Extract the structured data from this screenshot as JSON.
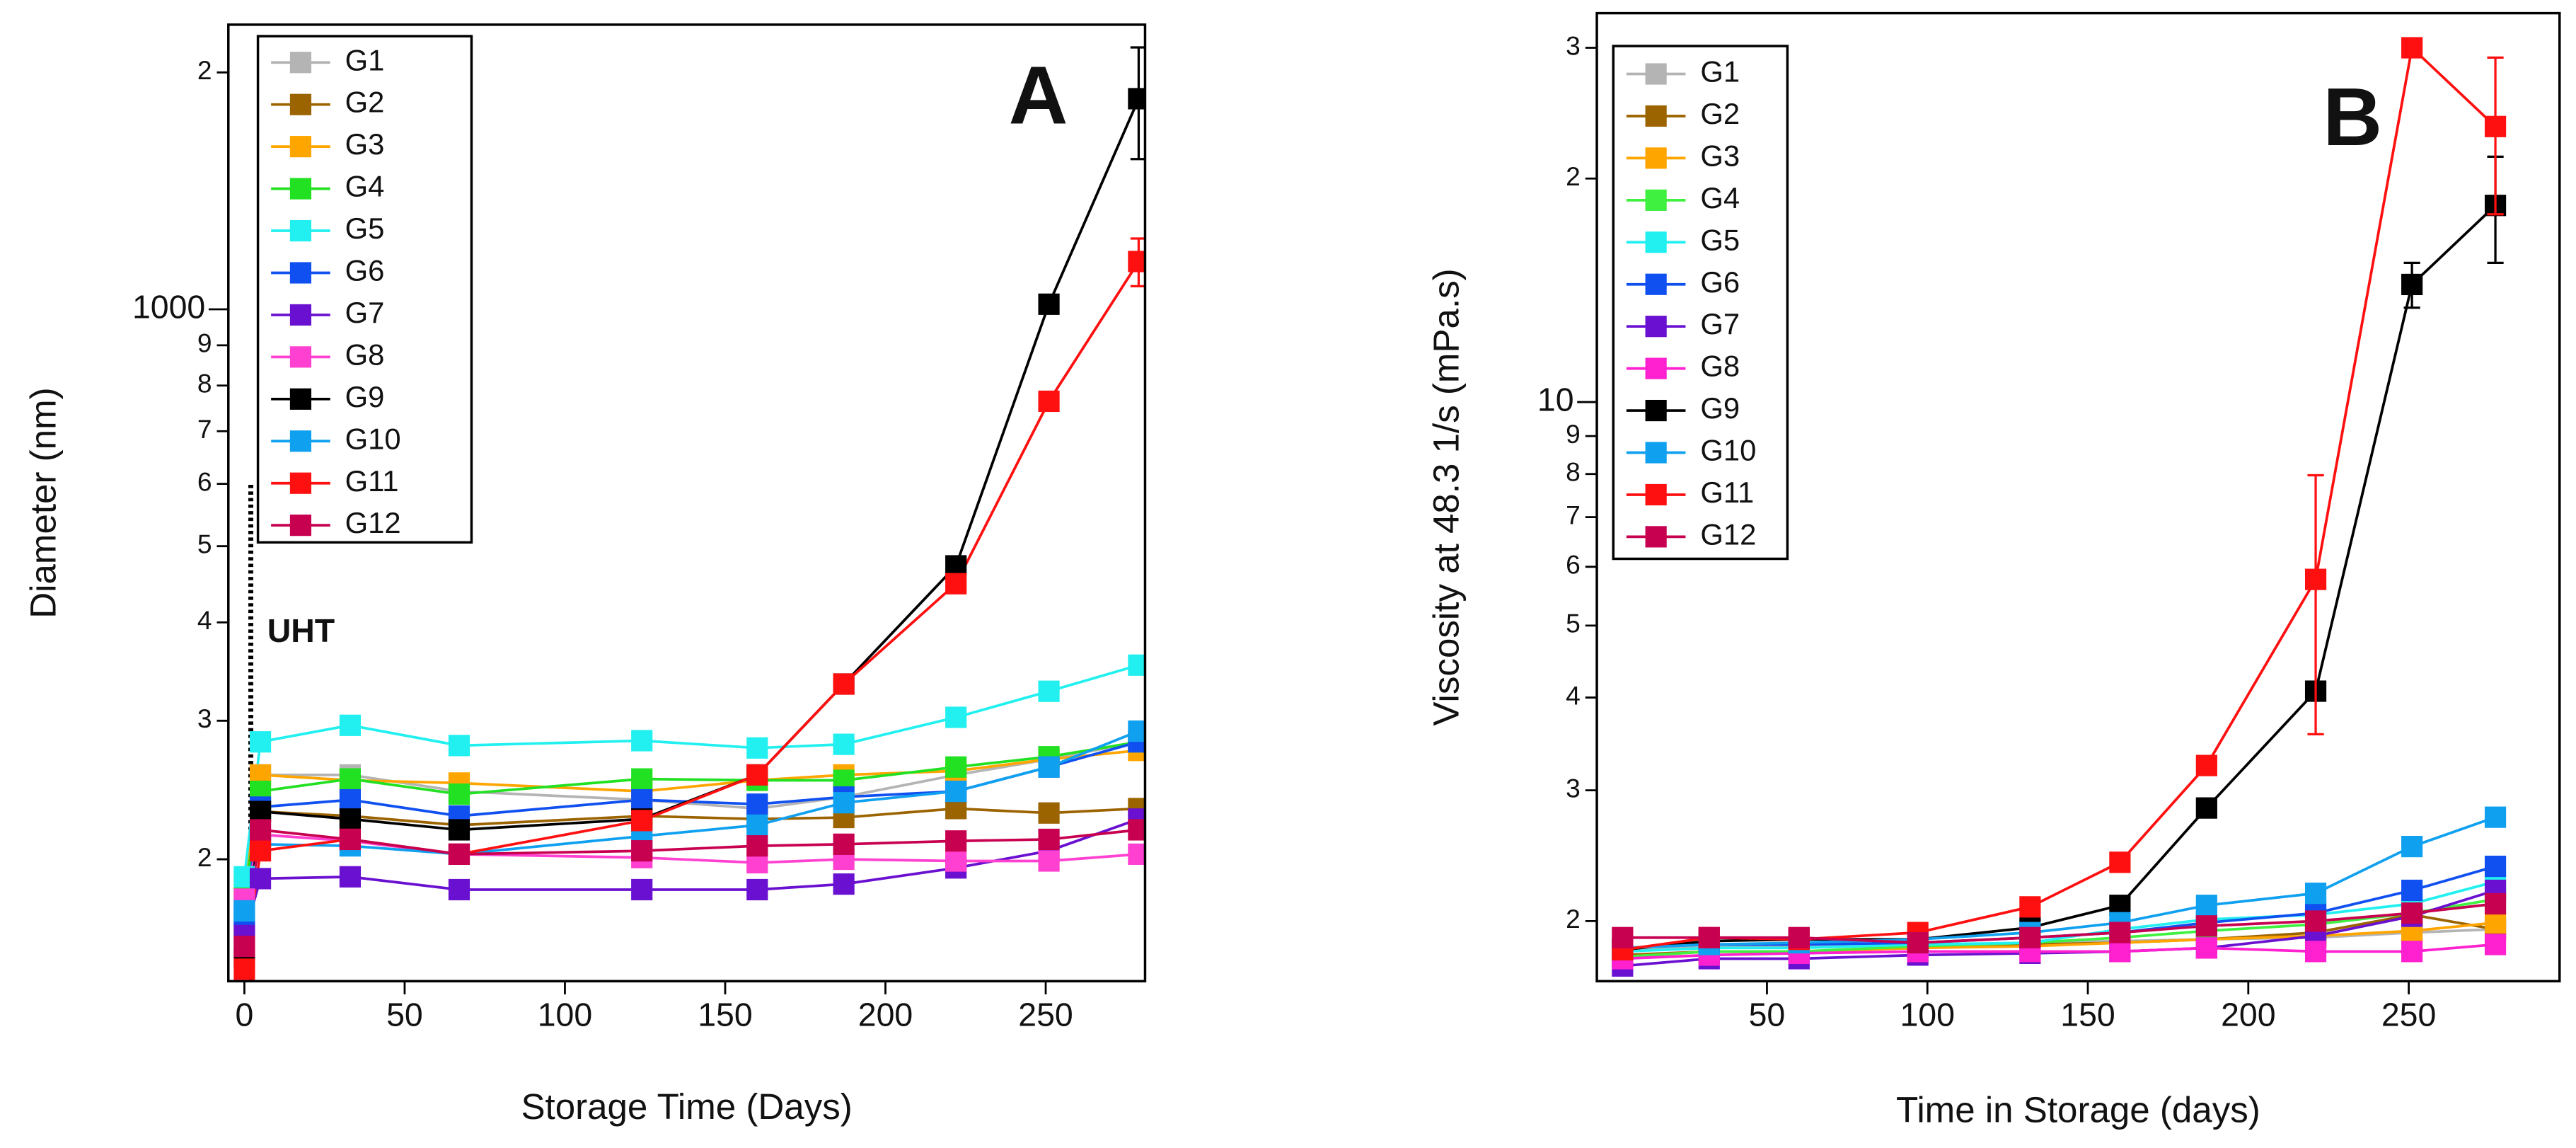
{
  "chart_data": [
    {
      "type": "line",
      "log_y": true,
      "panel_letter": "A",
      "ylabel": "Diameter (nm)",
      "xlabel": "Storage Time (Days)",
      "xlim": [
        -5,
        281
      ],
      "ylim": [
        140,
        2300
      ],
      "xticks": [
        0,
        50,
        100,
        150,
        200,
        250
      ],
      "yticks": [
        {
          "value": 2000,
          "label": "2"
        },
        1000,
        {
          "value": 900,
          "label": "9"
        },
        {
          "value": 800,
          "label": "8"
        },
        {
          "value": 700,
          "label": "7"
        },
        {
          "value": 600,
          "label": "6"
        },
        {
          "value": 500,
          "label": "5"
        },
        {
          "value": 400,
          "label": "4"
        },
        {
          "value": 300,
          "label": "3"
        },
        {
          "value": 200,
          "label": "2"
        }
      ],
      "annotation": {
        "text": "UHT",
        "x": 2,
        "y_top": 600
      },
      "legend": "upper left",
      "x": [
        0,
        5,
        33,
        67,
        124,
        160,
        187,
        222,
        251,
        279
      ],
      "series": [
        {
          "name": "G1",
          "color": "#b4b4b4",
          "values": [
            175,
            256,
            256,
            244,
            238,
            232,
            240,
            256,
            268,
            282
          ]
        },
        {
          "name": "G2",
          "color": "#9c6400",
          "values": [
            165,
            230,
            227,
            221,
            227,
            225,
            226,
            232,
            229,
            232
          ]
        },
        {
          "name": "G3",
          "color": "#ffa500",
          "values": [
            185,
            256,
            252,
            250,
            244,
            252,
            256,
            259,
            268,
            275
          ]
        },
        {
          "name": "G4",
          "color": "#22e022",
          "values": [
            180,
            244,
            253,
            242,
            253,
            252,
            252,
            262,
            270,
            282
          ]
        },
        {
          "name": "G5",
          "color": "#22f0f0",
          "values": [
            190,
            282,
            296,
            279,
            283,
            277,
            280,
            303,
            327,
            353
          ]
        },
        {
          "name": "G6",
          "color": "#1050f0",
          "values": [
            170,
            233,
            238,
            227,
            238,
            235,
            240,
            244,
            262,
            282
          ]
        },
        {
          "name": "G7",
          "color": "#6a10d0",
          "values": [
            160,
            189,
            190,
            183,
            183,
            183,
            186,
            195,
            205,
            225
          ]
        },
        {
          "name": "G8",
          "color": "#ff40d0",
          "values": [
            178,
            215,
            211,
            203,
            201,
            198,
            200,
            199,
            199,
            203
          ]
        },
        {
          "name": "G9",
          "color": "#000000",
          "values": [
            150,
            230,
            225,
            218,
            225,
            256,
            334,
            472,
            1015,
            1852
          ],
          "errors": [
            null,
            null,
            null,
            null,
            null,
            null,
            null,
            null,
            null,
            300
          ]
        },
        {
          "name": "G10",
          "color": "#10a0f0",
          "values": [
            172,
            209,
            208,
            203,
            214,
            221,
            236,
            244,
            262,
            291
          ]
        },
        {
          "name": "G11",
          "color": "#ff1010",
          "values": [
            145,
            205,
            212,
            203,
            224,
            256,
            334,
            448,
            764,
            1150
          ],
          "errors": [
            null,
            null,
            null,
            null,
            null,
            null,
            null,
            null,
            null,
            80
          ]
        },
        {
          "name": "G12",
          "color": "#c80050",
          "values": [
            155,
            218,
            212,
            203,
            205,
            208,
            209,
            211,
            212,
            218
          ]
        }
      ]
    },
    {
      "type": "line",
      "log_y": true,
      "panel_letter": "B",
      "ylabel": "Viscosity at 48.3 1/s (mPa.s)",
      "xlabel": "Time in Storage (days)",
      "xlim": [
        -3,
        297
      ],
      "ylim": [
        1.66,
        33.4
      ],
      "xticks": [
        50,
        100,
        150,
        200,
        250
      ],
      "yticks": [
        {
          "value": 30,
          "label": "3"
        },
        {
          "value": 20,
          "label": "2"
        },
        10,
        9,
        8,
        7,
        6,
        5,
        4,
        3,
        2
      ],
      "legend": "upper left",
      "x": [
        5,
        32,
        60,
        97,
        132,
        160,
        187,
        221,
        251,
        277
      ],
      "series": [
        {
          "name": "G1",
          "color": "#b4b4b4",
          "values": [
            1.82,
            1.85,
            1.85,
            1.85,
            1.87,
            1.88,
            1.89,
            1.9,
            1.93,
            1.95
          ]
        },
        {
          "name": "G2",
          "color": "#9c6400",
          "values": [
            1.8,
            1.82,
            1.82,
            1.84,
            1.86,
            1.87,
            1.89,
            1.93,
            2.04,
            1.95
          ]
        },
        {
          "name": "G3",
          "color": "#ffa500",
          "values": [
            1.79,
            1.82,
            1.82,
            1.84,
            1.85,
            1.87,
            1.89,
            1.91,
            1.94,
            1.99
          ]
        },
        {
          "name": "G4",
          "color": "#40f040",
          "values": [
            1.79,
            1.82,
            1.82,
            1.85,
            1.87,
            1.9,
            1.94,
            1.98,
            2.05,
            2.14
          ]
        },
        {
          "name": "G5",
          "color": "#22f0f0",
          "values": [
            1.82,
            1.84,
            1.84,
            1.86,
            1.87,
            1.95,
            2.01,
            2.04,
            2.11,
            2.26
          ]
        },
        {
          "name": "G6",
          "color": "#1050f0",
          "values": [
            1.84,
            1.86,
            1.86,
            1.87,
            1.9,
            1.93,
            1.99,
            2.05,
            2.2,
            2.37
          ]
        },
        {
          "name": "G7",
          "color": "#6a10d0",
          "values": [
            1.74,
            1.78,
            1.78,
            1.8,
            1.81,
            1.82,
            1.84,
            1.91,
            2.03,
            2.2
          ]
        },
        {
          "name": "G8",
          "color": "#ff20d0",
          "values": [
            1.78,
            1.8,
            1.81,
            1.82,
            1.82,
            1.82,
            1.84,
            1.82,
            1.82,
            1.86
          ]
        },
        {
          "name": "G9",
          "color": "#000000",
          "values": [
            1.83,
            1.88,
            1.89,
            1.89,
            1.96,
            2.1,
            2.84,
            4.08,
            14.4,
            18.4
          ],
          "errors": [
            null,
            null,
            null,
            null,
            null,
            null,
            null,
            null,
            1.0,
            3.0
          ]
        },
        {
          "name": "G10",
          "color": "#10a0f0",
          "values": [
            1.84,
            1.86,
            1.87,
            1.89,
            1.93,
            1.99,
            2.1,
            2.18,
            2.52,
            2.76
          ]
        },
        {
          "name": "G11",
          "color": "#ff1010",
          "values": [
            1.83,
            1.9,
            1.89,
            1.93,
            2.09,
            2.4,
            3.24,
            5.77,
            30,
            23.5
          ],
          "errors": [
            null,
            null,
            null,
            null,
            null,
            null,
            null,
            2.2,
            null,
            5.6
          ]
        },
        {
          "name": "G12",
          "color": "#c80050",
          "values": [
            1.9,
            1.9,
            1.9,
            1.87,
            1.9,
            1.93,
            1.97,
            2.0,
            2.05,
            2.11
          ]
        }
      ]
    }
  ]
}
